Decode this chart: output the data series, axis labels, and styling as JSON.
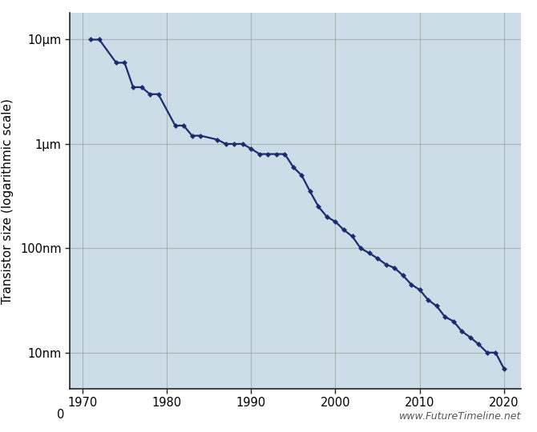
{
  "ylabel": "Transistor size (logarithmic scale)",
  "website": "www.FutureTimeline.net",
  "line_color": "#1a2b6e",
  "marker": "D",
  "marker_size": 3.0,
  "linewidth": 1.6,
  "ytick_labels": [
    "10nm",
    "100nm",
    "1μm",
    "10μm"
  ],
  "ytick_values_nm": [
    10,
    100,
    1000,
    10000
  ],
  "xticks": [
    1970,
    1980,
    1990,
    2000,
    2010,
    2020
  ],
  "data_points_nm": [
    [
      1971,
      10000
    ],
    [
      1972,
      10000
    ],
    [
      1974,
      6000
    ],
    [
      1975,
      6000
    ],
    [
      1976,
      3500
    ],
    [
      1977,
      3500
    ],
    [
      1978,
      3000
    ],
    [
      1979,
      3000
    ],
    [
      1981,
      1500
    ],
    [
      1982,
      1500
    ],
    [
      1983,
      1200
    ],
    [
      1984,
      1200
    ],
    [
      1986,
      1100
    ],
    [
      1987,
      1000
    ],
    [
      1988,
      1000
    ],
    [
      1989,
      1000
    ],
    [
      1990,
      900
    ],
    [
      1991,
      800
    ],
    [
      1992,
      800
    ],
    [
      1993,
      800
    ],
    [
      1994,
      800
    ],
    [
      1995,
      600
    ],
    [
      1996,
      500
    ],
    [
      1997,
      350
    ],
    [
      1998,
      250
    ],
    [
      1999,
      200
    ],
    [
      2000,
      180
    ],
    [
      2001,
      150
    ],
    [
      2002,
      130
    ],
    [
      2003,
      100
    ],
    [
      2004,
      90
    ],
    [
      2005,
      80
    ],
    [
      2006,
      70
    ],
    [
      2007,
      65
    ],
    [
      2008,
      55
    ],
    [
      2009,
      45
    ],
    [
      2010,
      40
    ],
    [
      2011,
      32
    ],
    [
      2012,
      28
    ],
    [
      2013,
      22
    ],
    [
      2014,
      20
    ],
    [
      2015,
      16
    ],
    [
      2016,
      14
    ],
    [
      2017,
      12
    ],
    [
      2018,
      10
    ],
    [
      2019,
      10
    ],
    [
      2020,
      7
    ]
  ],
  "xlim": [
    1968.5,
    2022
  ],
  "ylim_min_nm": 4.5,
  "ylim_max_nm": 18000,
  "grid_color": "#999999",
  "grid_alpha": 0.6,
  "grid_linewidth": 0.8,
  "bg_circuit_color": "#ccdde8",
  "bg_white": "#ffffff",
  "spine_color": "#222222",
  "tick_fontsize": 10.5,
  "ylabel_fontsize": 11,
  "website_fontsize": 9,
  "website_color": "#555555"
}
